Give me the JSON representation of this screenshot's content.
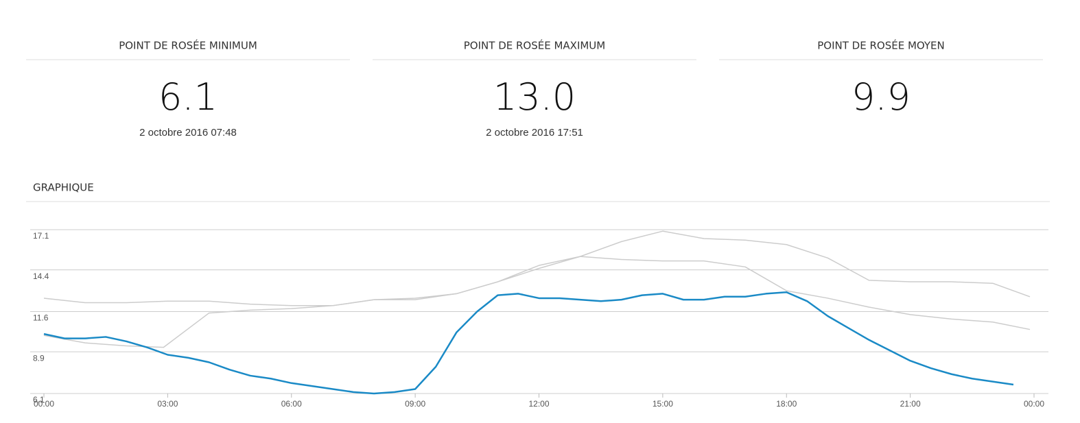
{
  "stats": [
    {
      "title": "POINT DE ROSÉE MINIMUM",
      "value": "6.1",
      "date": "2 octobre 2016 07:48"
    },
    {
      "title": "POINT DE ROSÉE MAXIMUM",
      "value": "13.0",
      "date": "2 octobre 2016 17:51"
    },
    {
      "title": "POINT DE ROSÉE MOYEN",
      "value": "9.9"
    }
  ],
  "section_title": "GRAPHIQUE",
  "chart_data": {
    "type": "line",
    "xlim": [
      0,
      24
    ],
    "xticks": [
      {
        "value": 0,
        "label": "00:00"
      },
      {
        "value": 3,
        "label": "03:00"
      },
      {
        "value": 6,
        "label": "06:00"
      },
      {
        "value": 9,
        "label": "09:00"
      },
      {
        "value": 12,
        "label": "12:00"
      },
      {
        "value": 15,
        "label": "15:00"
      },
      {
        "value": 18,
        "label": "18:00"
      },
      {
        "value": 21,
        "label": "21:00"
      },
      {
        "value": 24,
        "label": "00:00"
      }
    ],
    "ylim": [
      6.1,
      17.1
    ],
    "yticks": [
      6.1,
      8.9,
      11.6,
      14.4,
      17.1
    ],
    "grid": true,
    "series": [
      {
        "color": "#cccccc",
        "x": [
          0,
          1,
          2,
          3,
          4,
          5,
          6,
          7,
          8,
          9,
          10,
          11,
          12,
          13,
          14,
          15,
          16,
          17,
          18,
          19,
          20,
          21,
          22,
          23,
          23.9
        ],
        "values": [
          12.5,
          12.2,
          12.2,
          12.3,
          12.3,
          12.1,
          12.0,
          12.0,
          12.4,
          12.4,
          12.8,
          13.6,
          14.5,
          15.3,
          15.1,
          15.0,
          15.0,
          14.6,
          13.0,
          12.5,
          11.9,
          11.4,
          11.1,
          10.9,
          10.4
        ]
      },
      {
        "color": "#cccccc",
        "x": [
          0,
          1,
          2,
          2.9,
          4,
          5,
          6,
          7,
          8,
          9,
          10,
          11,
          12,
          13,
          14,
          15,
          16,
          17,
          18,
          19,
          20,
          21,
          22,
          23,
          23.9
        ],
        "values": [
          10.0,
          9.5,
          9.3,
          9.2,
          11.5,
          11.7,
          11.8,
          12.0,
          12.4,
          12.5,
          12.8,
          13.6,
          14.7,
          15.3,
          16.3,
          17.0,
          16.5,
          16.4,
          16.1,
          15.2,
          13.7,
          13.6,
          13.6,
          13.5,
          12.6
        ]
      },
      {
        "color": "#1a8ac6",
        "x": [
          0,
          0.5,
          1,
          1.5,
          2,
          2.5,
          3,
          3.5,
          4,
          4.5,
          5,
          5.5,
          6,
          6.5,
          7,
          7.5,
          8,
          8.5,
          9,
          9.5,
          10,
          10.5,
          11,
          11.5,
          12,
          12.5,
          13,
          13.5,
          14,
          14.5,
          15,
          15.5,
          16,
          16.5,
          17,
          17.5,
          18,
          18.5,
          19,
          19.5,
          20,
          20.5,
          21,
          21.5,
          22,
          22.5,
          23,
          23.5
        ],
        "values": [
          10.1,
          9.8,
          9.8,
          9.9,
          9.6,
          9.2,
          8.7,
          8.5,
          8.2,
          7.7,
          7.3,
          7.1,
          6.8,
          6.6,
          6.4,
          6.2,
          6.1,
          6.2,
          6.4,
          7.9,
          10.2,
          11.6,
          12.7,
          12.8,
          12.5,
          12.5,
          12.4,
          12.3,
          12.4,
          12.7,
          12.8,
          12.4,
          12.4,
          12.6,
          12.6,
          12.8,
          12.9,
          12.3,
          11.3,
          10.5,
          9.7,
          9.0,
          8.3,
          7.8,
          7.4,
          7.1,
          6.9,
          6.7
        ]
      }
    ]
  }
}
